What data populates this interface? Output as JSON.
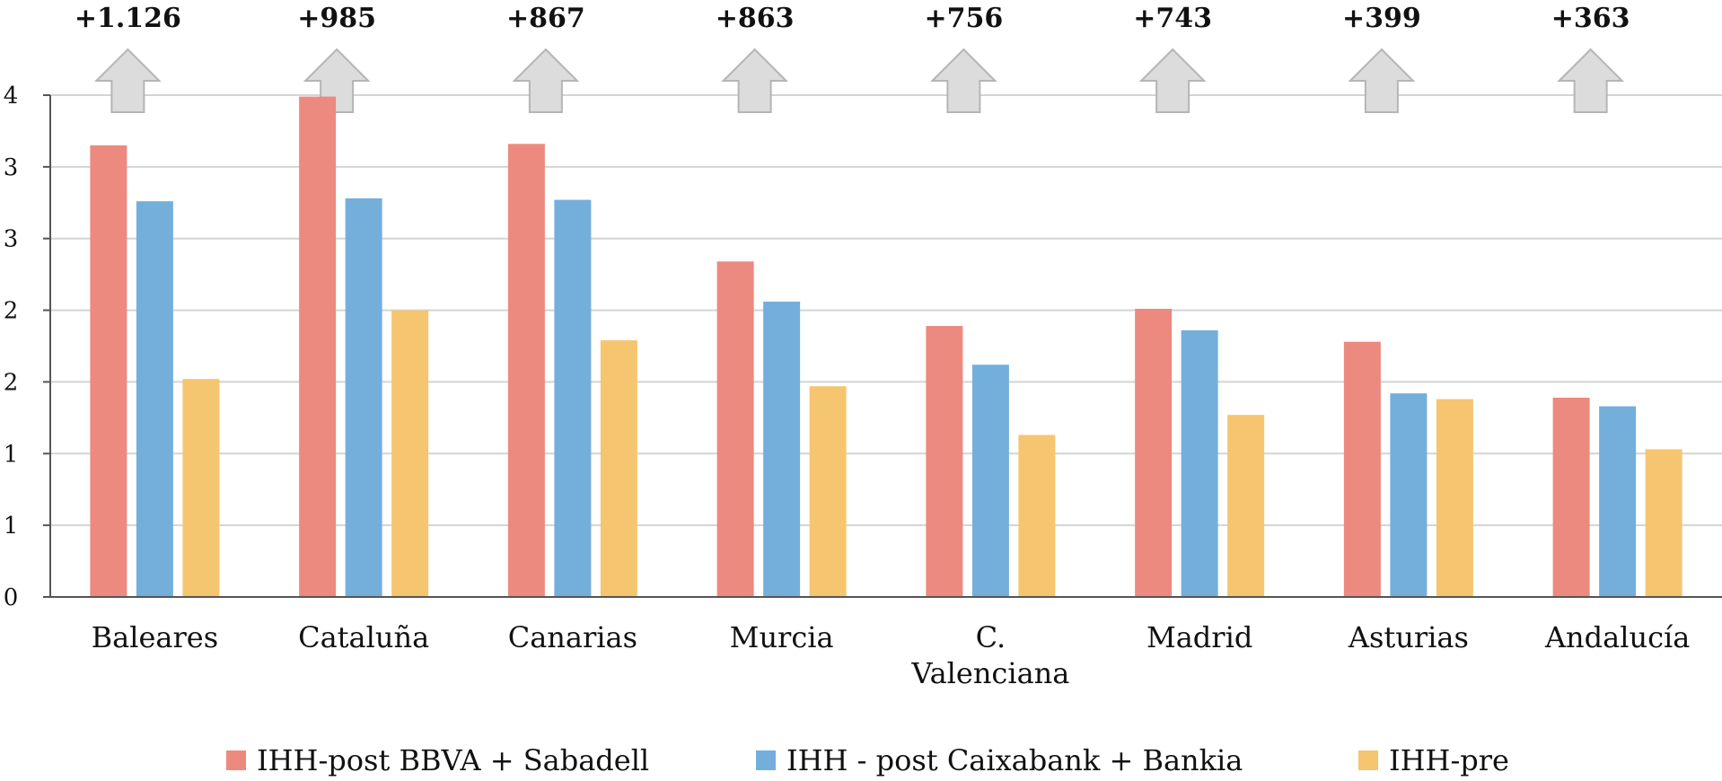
{
  "chart_data": {
    "type": "bar",
    "categories": [
      "Baleares",
      "Cataluña",
      "Canarias",
      "Murcia",
      "C. Valenciana",
      "Madrid",
      "Asturias",
      "Andalucía"
    ],
    "series": [
      {
        "name": "IHH-post BBVA + Sabadell",
        "color": "#ec8a7f",
        "values": [
          3.15,
          3.49,
          3.16,
          2.34,
          1.89,
          2.01,
          1.78,
          1.39
        ]
      },
      {
        "name": "IHH - post Caixabank + Bankia",
        "color": "#74afdc",
        "values": [
          2.76,
          2.78,
          2.77,
          2.06,
          1.62,
          1.86,
          1.42,
          1.33
        ]
      },
      {
        "name": "IHH-pre",
        "color": "#f6c570",
        "values": [
          1.52,
          2.0,
          1.79,
          1.47,
          1.13,
          1.27,
          1.38,
          1.03
        ]
      }
    ],
    "deltas": [
      "+1.126",
      "+985",
      "+867",
      "+863",
      "+756",
      "+743",
      "+399",
      "+363"
    ],
    "ylim": [
      0,
      3.5
    ],
    "ytick_values": [
      0,
      0.5,
      1,
      1.5,
      2,
      2.5,
      3,
      3.5
    ],
    "ytick_labels": [
      "0",
      "1",
      "1",
      "2",
      "2",
      "3",
      "3",
      "4"
    ],
    "grid": true,
    "legend_position": "bottom",
    "arrow_color": "#dcdcdc",
    "title": "",
    "xlabel": "",
    "ylabel": ""
  }
}
